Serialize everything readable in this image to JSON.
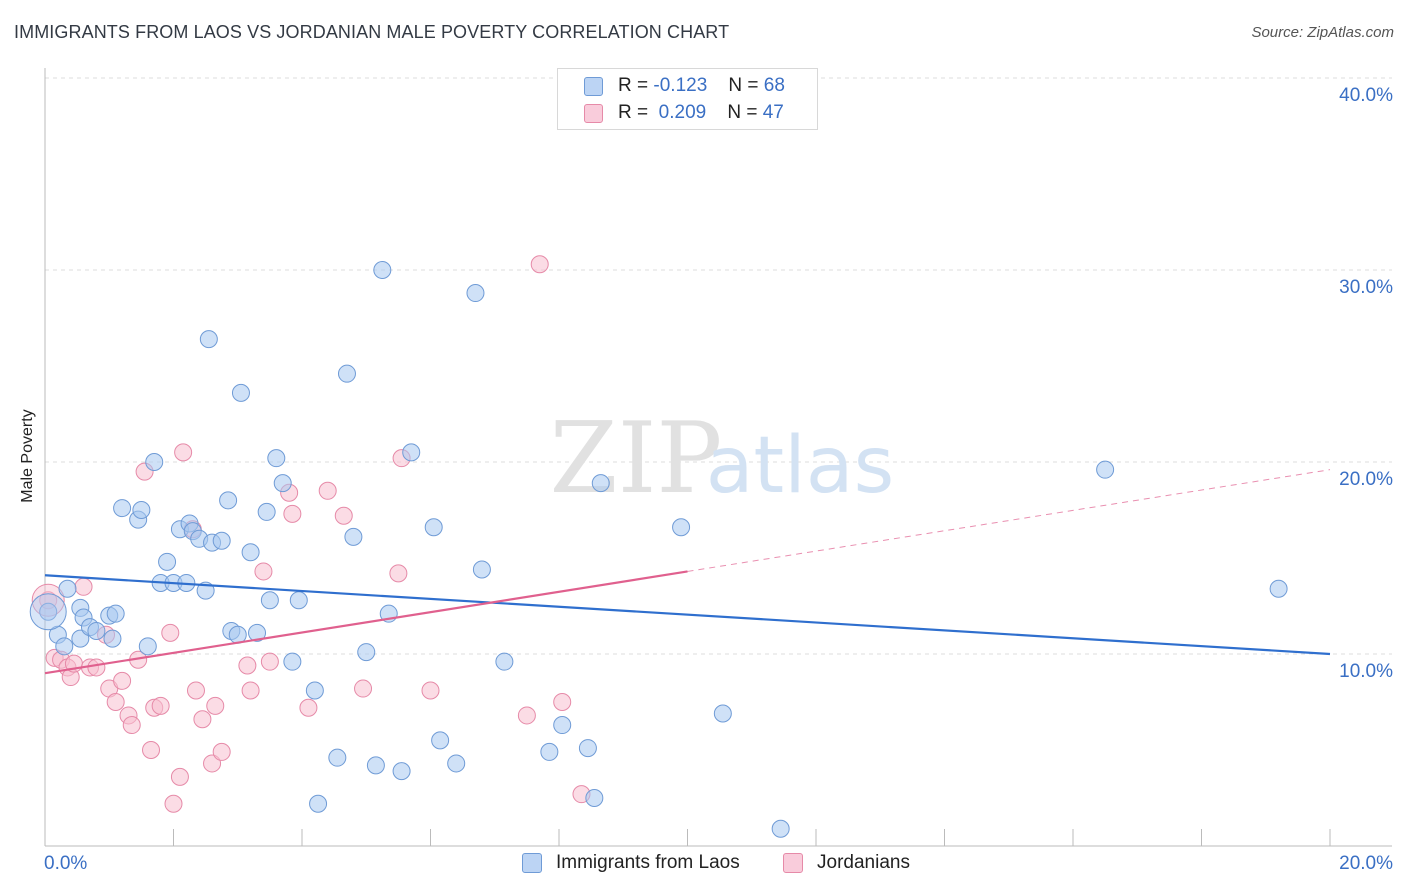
{
  "chart_data": {
    "type": "scatter",
    "title": "IMMIGRANTS FROM LAOS VS JORDANIAN MALE POVERTY CORRELATION CHART",
    "source": "Source: ZipAtlas.com",
    "watermark": "ZIPatlas",
    "xlabel": "",
    "ylabel": "Male Poverty",
    "xlim": [
      0,
      20
    ],
    "ylim": [
      0,
      40
    ],
    "x_tick_labels": [
      "0.0%",
      "20.0%"
    ],
    "y_tick_labels": [
      "10.0%",
      "20.0%",
      "30.0%",
      "40.0%"
    ],
    "y_ticks": [
      10,
      20,
      30,
      40
    ],
    "grid": true,
    "legend": {
      "position": "top-center",
      "rows": [
        {
          "r_label": "R =",
          "r_value": "-0.123",
          "n_label": "N =",
          "n_value": "68"
        },
        {
          "r_label": "R =",
          "r_value": "0.209",
          "n_label": "N =",
          "n_value": "47"
        }
      ]
    },
    "series": [
      {
        "name": "Immigrants from Laos",
        "color": "#a8c8f0",
        "stroke": "#6f9bd6",
        "trend_color": "#2f6fce",
        "trend": {
          "x0": 0,
          "y0": 14.1,
          "x1": 20,
          "y1": 10.0,
          "dashed_from": null
        },
        "points": [
          [
            0.05,
            12.2
          ],
          [
            0.2,
            11.0
          ],
          [
            0.35,
            13.4
          ],
          [
            0.3,
            10.4
          ],
          [
            0.55,
            12.4
          ],
          [
            0.6,
            11.9
          ],
          [
            0.55,
            10.8
          ],
          [
            0.7,
            11.4
          ],
          [
            0.8,
            11.2
          ],
          [
            1.0,
            12.0
          ],
          [
            1.1,
            12.1
          ],
          [
            1.05,
            10.8
          ],
          [
            1.2,
            17.6
          ],
          [
            1.45,
            17.0
          ],
          [
            1.5,
            17.5
          ],
          [
            1.6,
            10.4
          ],
          [
            1.7,
            20.0
          ],
          [
            1.8,
            13.7
          ],
          [
            1.9,
            14.8
          ],
          [
            2.0,
            13.7
          ],
          [
            2.1,
            16.5
          ],
          [
            2.2,
            13.7
          ],
          [
            2.25,
            16.8
          ],
          [
            2.3,
            16.4
          ],
          [
            2.4,
            16.0
          ],
          [
            2.5,
            13.3
          ],
          [
            2.55,
            26.4
          ],
          [
            2.6,
            15.8
          ],
          [
            2.75,
            15.9
          ],
          [
            2.85,
            18.0
          ],
          [
            2.9,
            11.2
          ],
          [
            3.0,
            11.0
          ],
          [
            3.05,
            23.6
          ],
          [
            3.2,
            15.3
          ],
          [
            3.3,
            11.1
          ],
          [
            3.45,
            17.4
          ],
          [
            3.5,
            12.8
          ],
          [
            3.6,
            20.2
          ],
          [
            3.7,
            18.9
          ],
          [
            3.85,
            9.6
          ],
          [
            3.95,
            12.8
          ],
          [
            4.2,
            8.1
          ],
          [
            4.25,
            2.2
          ],
          [
            4.55,
            4.6
          ],
          [
            4.7,
            24.6
          ],
          [
            4.8,
            16.1
          ],
          [
            5.0,
            10.1
          ],
          [
            5.15,
            4.2
          ],
          [
            5.25,
            30.0
          ],
          [
            5.35,
            12.1
          ],
          [
            5.55,
            3.9
          ],
          [
            5.7,
            20.5
          ],
          [
            6.05,
            16.6
          ],
          [
            6.15,
            5.5
          ],
          [
            6.4,
            4.3
          ],
          [
            6.7,
            28.8
          ],
          [
            6.8,
            14.4
          ],
          [
            7.15,
            9.6
          ],
          [
            7.85,
            4.9
          ],
          [
            8.05,
            6.3
          ],
          [
            8.45,
            5.1
          ],
          [
            8.55,
            2.5
          ],
          [
            8.65,
            18.9
          ],
          [
            9.9,
            16.6
          ],
          [
            10.55,
            6.9
          ],
          [
            11.45,
            0.9
          ],
          [
            16.5,
            19.6
          ],
          [
            19.2,
            13.4
          ]
        ]
      },
      {
        "name": "Jordanians",
        "color": "#f7bfd0",
        "stroke": "#e68aa8",
        "trend_color": "#e0608e",
        "trend": {
          "x0": 0,
          "y0": 9.0,
          "x1": 20,
          "y1": 19.6,
          "dashed_from": 10
        },
        "points": [
          [
            0.05,
            12.8
          ],
          [
            0.15,
            9.8
          ],
          [
            0.25,
            9.7
          ],
          [
            0.35,
            9.3
          ],
          [
            0.4,
            8.8
          ],
          [
            0.45,
            9.5
          ],
          [
            0.6,
            13.5
          ],
          [
            0.7,
            9.3
          ],
          [
            0.8,
            9.3
          ],
          [
            0.95,
            11.0
          ],
          [
            1.0,
            8.2
          ],
          [
            1.1,
            7.5
          ],
          [
            1.2,
            8.6
          ],
          [
            1.3,
            6.8
          ],
          [
            1.35,
            6.3
          ],
          [
            1.45,
            9.7
          ],
          [
            1.55,
            19.5
          ],
          [
            1.65,
            5.0
          ],
          [
            1.7,
            7.2
          ],
          [
            1.8,
            7.3
          ],
          [
            1.95,
            11.1
          ],
          [
            2.0,
            2.2
          ],
          [
            2.1,
            3.6
          ],
          [
            2.15,
            20.5
          ],
          [
            2.3,
            16.5
          ],
          [
            2.35,
            8.1
          ],
          [
            2.45,
            6.6
          ],
          [
            2.6,
            4.3
          ],
          [
            2.65,
            7.3
          ],
          [
            2.75,
            4.9
          ],
          [
            3.15,
            9.4
          ],
          [
            3.2,
            8.1
          ],
          [
            3.4,
            14.3
          ],
          [
            3.5,
            9.6
          ],
          [
            3.8,
            18.4
          ],
          [
            3.85,
            17.3
          ],
          [
            4.1,
            7.2
          ],
          [
            4.4,
            18.5
          ],
          [
            4.65,
            17.2
          ],
          [
            4.95,
            8.2
          ],
          [
            5.5,
            14.2
          ],
          [
            5.55,
            20.2
          ],
          [
            6.0,
            8.1
          ],
          [
            7.5,
            6.8
          ],
          [
            7.7,
            30.3
          ],
          [
            8.05,
            7.5
          ],
          [
            8.35,
            2.7
          ]
        ]
      }
    ]
  }
}
